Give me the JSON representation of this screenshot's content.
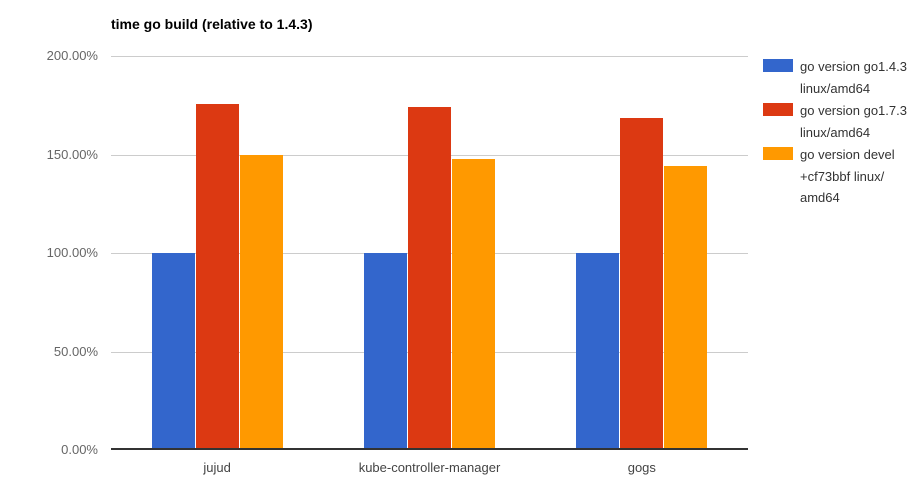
{
  "chart_data": {
    "type": "bar",
    "title": "time go build (relative to 1.4.3)",
    "categories": [
      "jujud",
      "kube-controller-manager",
      "gogs"
    ],
    "series": [
      {
        "name": "go version go1.4.3 linux/amd64",
        "legend_lines": [
          "go version go1.4.3",
          "linux/amd64"
        ],
        "color": "#3366cc",
        "values": [
          100,
          100,
          100
        ]
      },
      {
        "name": "go version go1.7.3 linux/amd64",
        "legend_lines": [
          "go version go1.7.3",
          "linux/amd64"
        ],
        "color": "#dc3912",
        "values": [
          175.6,
          174.1,
          168.5
        ]
      },
      {
        "name": "go version devel +cf73bbf linux/amd64",
        "legend_lines": [
          "go version devel",
          "+cf73bbf linux/",
          "amd64"
        ],
        "color": "#ff9900",
        "values": [
          149.6,
          147.6,
          144.2
        ]
      }
    ],
    "xlabel": "",
    "ylabel": "",
    "ylim": [
      0,
      200
    ],
    "yticks": [
      {
        "value": 200,
        "label": "200.00%"
      },
      {
        "value": 150,
        "label": "150.00%"
      },
      {
        "value": 100,
        "label": "100.00%"
      },
      {
        "value": 50,
        "label": "50.00%"
      },
      {
        "value": 0,
        "label": "0.00%"
      }
    ],
    "grid": true,
    "legend_position": "right"
  },
  "theme": {
    "background": "#ffffff",
    "grid_color": "#cccccc",
    "axis_color": "#333333",
    "ytick_color": "#666666",
    "xtick_color": "#444444",
    "title_color": "#000000",
    "legend_text_color": "#333333"
  }
}
